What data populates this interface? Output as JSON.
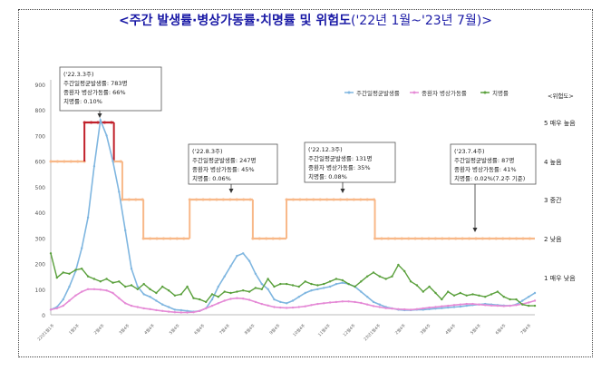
{
  "title": {
    "main": "<주간 발생률·병상가동률·치명률 및 위험도",
    "sub": "('22년 1월~'23년 7월)>"
  },
  "chart_data": {
    "type": "line",
    "y_ticks": [
      "0",
      "100",
      "200",
      "300",
      "400",
      "500",
      "600",
      "700",
      "800",
      "900"
    ],
    "ylim": [
      0,
      900
    ],
    "x_labels": [
      "22년1월1주",
      "1월5주",
      "2월4주",
      "3월4주",
      "4월4주",
      "5월4주",
      "6월4주",
      "7월4주",
      "8월4주",
      "9월4주",
      "10월4주",
      "11월4주",
      "12월4주",
      "23년1월4주",
      "2월4주",
      "3월4주",
      "4월4주",
      "5월4주",
      "6월4주",
      "7월4주"
    ],
    "legend": [
      "주간일평균발생률",
      "중환자 병상가동률",
      "치명률"
    ],
    "series_colors": [
      "#7fb6e0",
      "#e58ad6",
      "#5aa03c"
    ],
    "series": [
      {
        "name": "주간일평균발생률",
        "values": [
          20,
          30,
          60,
          110,
          170,
          260,
          380,
          580,
          760,
          700,
          600,
          480,
          330,
          180,
          110,
          80,
          70,
          55,
          40,
          30,
          20,
          18,
          15,
          12,
          15,
          25,
          60,
          110,
          150,
          190,
          230,
          240,
          210,
          160,
          120,
          100,
          60,
          50,
          45,
          55,
          70,
          85,
          95,
          100,
          105,
          110,
          120,
          125,
          120,
          110,
          90,
          70,
          50,
          40,
          30,
          25,
          20,
          18,
          18,
          20,
          20,
          22,
          24,
          26,
          28,
          30,
          32,
          35,
          38,
          40,
          42,
          40,
          38,
          36,
          35,
          40,
          55,
          70,
          85
        ]
      },
      {
        "name": "중환자 병상가동률",
        "values": [
          20,
          25,
          35,
          55,
          75,
          90,
          100,
          100,
          98,
          95,
          85,
          65,
          45,
          35,
          30,
          25,
          22,
          18,
          15,
          12,
          10,
          9,
          9,
          10,
          15,
          25,
          35,
          45,
          55,
          62,
          65,
          63,
          58,
          50,
          42,
          36,
          30,
          28,
          27,
          28,
          30,
          33,
          38,
          42,
          45,
          48,
          50,
          52,
          52,
          50,
          46,
          40,
          34,
          30,
          26,
          24,
          22,
          21,
          20,
          22,
          25,
          28,
          30,
          33,
          35,
          38,
          40,
          42,
          42,
          40,
          38,
          36,
          35,
          34,
          35,
          38,
          42,
          48,
          55
        ]
      },
      {
        "name": "치명률",
        "values": [
          240,
          145,
          165,
          160,
          175,
          180,
          150,
          140,
          130,
          140,
          125,
          130,
          110,
          115,
          100,
          120,
          100,
          85,
          110,
          95,
          75,
          80,
          110,
          65,
          60,
          50,
          80,
          70,
          90,
          85,
          90,
          95,
          90,
          105,
          100,
          140,
          110,
          120,
          120,
          115,
          110,
          130,
          120,
          115,
          120,
          130,
          140,
          135,
          120,
          110,
          130,
          150,
          165,
          150,
          140,
          150,
          195,
          170,
          130,
          115,
          90,
          110,
          85,
          60,
          90,
          75,
          85,
          75,
          80,
          75,
          70,
          80,
          90,
          70,
          60,
          60,
          40,
          35,
          35
        ]
      }
    ],
    "risk_levels": [
      "1 매우 낮음",
      "2 낮음",
      "3 중간",
      "4 높음",
      "5 매우 높음"
    ],
    "risk_axis_title": "<위험도>",
    "risk_steps": [
      {
        "from": 0,
        "to": 8,
        "level": 4
      },
      {
        "from": 8,
        "to": 15,
        "level": 5
      },
      {
        "from": 15,
        "to": 17,
        "level": 4
      },
      {
        "from": 17,
        "to": 22,
        "level": 3
      },
      {
        "from": 22,
        "to": 33,
        "level": 2
      },
      {
        "from": 33,
        "to": 48,
        "level": 3
      },
      {
        "from": 48,
        "to": 56,
        "level": 2
      },
      {
        "from": 56,
        "to": 77,
        "level": 3
      },
      {
        "from": 77,
        "to": 115,
        "level": 2
      }
    ],
    "risk_colors": {
      "high": "#f8b888",
      "highest": "#c0202a"
    },
    "annotations": [
      {
        "lines": [
          "('22.3.3주)",
          "주간일평균발생률: 783명",
          "중환자 병상가동률: 66%",
          "치명률: 0.10%"
        ]
      },
      {
        "lines": [
          "('22.8.3주)",
          "주간일평균발생률: 247명",
          "중환자 병상가동률: 45%",
          "치명률: 0.06%"
        ]
      },
      {
        "lines": [
          "('22.12.3주)",
          "주간일평균발생률: 131명",
          "중환자 병상가동률: 35%",
          "치명률: 0.08%"
        ]
      },
      {
        "lines": [
          "('23.7.4주)",
          "주간일평균발생률: 87명",
          "중환자 병상가동률: 41%",
          "치명률: 0.02%(7.2주 기준)"
        ]
      }
    ]
  }
}
